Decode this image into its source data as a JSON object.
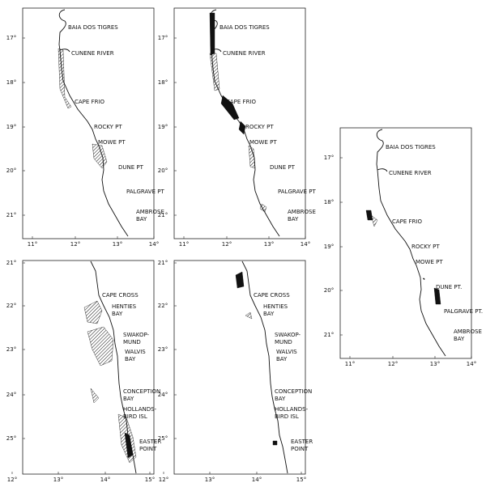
{
  "maps": [
    {
      "lat_labels": [
        "17°",
        "18°",
        "19°",
        "20°",
        "21°"
      ],
      "lon_labels": [
        "11°",
        "12°",
        "13°",
        "14°"
      ],
      "places": [
        {
          "lines": [
            "BAIA DOS TIGRES"
          ]
        },
        {
          "lines": [
            "CUNENE RIVER"
          ]
        },
        {
          "lines": [
            "CAPE FRIO"
          ]
        },
        {
          "lines": [
            "ROCKY PT"
          ]
        },
        {
          "lines": [
            "MOWE PT"
          ]
        },
        {
          "lines": [
            "DUNE PT"
          ]
        },
        {
          "lines": [
            "PALGRAVE PT"
          ]
        },
        {
          "lines": [
            "AMBROSE",
            "BAY"
          ]
        }
      ]
    },
    {
      "lat_labels": [
        "17°",
        "18°",
        "19°",
        "20°",
        "21°"
      ],
      "lon_labels": [
        "11°",
        "12°",
        "13°",
        "14°"
      ],
      "places": [
        {
          "lines": [
            "BAIA DOS TIGRES"
          ]
        },
        {
          "lines": [
            "CUNENE RIVER"
          ]
        },
        {
          "lines": [
            "CAPE FRIO"
          ]
        },
        {
          "lines": [
            "ROCKY PT"
          ]
        },
        {
          "lines": [
            "MOWE PT"
          ]
        },
        {
          "lines": [
            "DUNE PT"
          ]
        },
        {
          "lines": [
            "PALGRAVE PT"
          ]
        },
        {
          "lines": [
            "AMBROSE",
            "BAY"
          ]
        }
      ]
    },
    {
      "lat_labels": [
        "17°",
        "18°",
        "19°",
        "20°",
        "21°"
      ],
      "lon_labels": [
        "11°",
        "12°",
        "13°",
        "14°"
      ],
      "places": [
        {
          "lines": [
            "BAIA DOS TIGRES"
          ]
        },
        {
          "lines": [
            "CUNENE RIVER"
          ]
        },
        {
          "lines": [
            "CAPE FRIO"
          ]
        },
        {
          "lines": [
            "ROCKY PT"
          ]
        },
        {
          "lines": [
            "MOWE PT"
          ]
        },
        {
          "lines": [
            "DUNE PT."
          ]
        },
        {
          "lines": [
            "PALGRAVE PT."
          ]
        },
        {
          "lines": [
            "AMBROSE",
            "BAY"
          ]
        }
      ]
    },
    {
      "lat_labels": [
        "21°",
        "22°",
        "23°",
        "24°",
        "25°"
      ],
      "lon_labels": [
        "12°",
        "13°",
        "14°",
        "15°"
      ],
      "places": [
        {
          "lines": [
            "CAPE CROSS"
          ]
        },
        {
          "lines": [
            "HENTIES",
            "BAY"
          ]
        },
        {
          "lines": [
            "SWAKOP-",
            "MUND"
          ]
        },
        {
          "lines": [
            "WALVIS",
            "BAY"
          ]
        },
        {
          "lines": [
            "CONCEPTION",
            "BAY"
          ]
        },
        {
          "lines": [
            "HOLLANDS-",
            "BIRD ISL"
          ]
        },
        {
          "lines": [
            "EASTER",
            "POINT"
          ]
        }
      ]
    },
    {
      "lat_labels": [
        "21°",
        "22°",
        "23°",
        "24°",
        "25°"
      ],
      "lon_labels": [
        "12°",
        "13°",
        "14°",
        "15°"
      ],
      "places": [
        {
          "lines": [
            "CAPE CROSS"
          ]
        },
        {
          "lines": [
            "HENTIES",
            "BAY"
          ]
        },
        {
          "lines": [
            "SWAKOP-",
            "MUND"
          ]
        },
        {
          "lines": [
            "WALVIS",
            "BAY"
          ]
        },
        {
          "lines": [
            "CONCEPTION",
            "BAY"
          ]
        },
        {
          "lines": [
            "HOLLANDS-",
            "BIRD ISL"
          ]
        },
        {
          "lines": [
            "EASTER",
            "POINT"
          ]
        }
      ]
    }
  ]
}
